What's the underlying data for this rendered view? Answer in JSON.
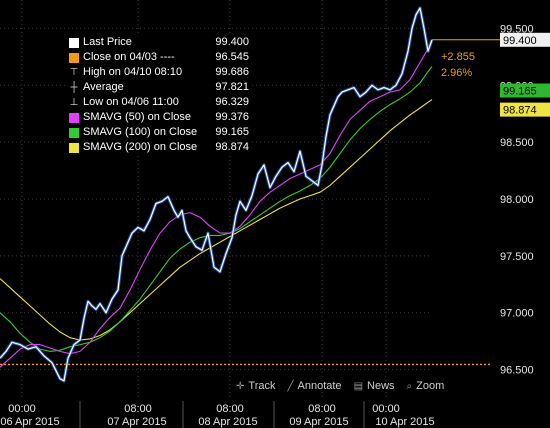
{
  "chart_data": {
    "type": "line",
    "y_ticks": [
      "99.500",
      "99.000",
      "98.500",
      "98.000",
      "97.500",
      "97.000",
      "96.500"
    ],
    "ylim": [
      96.25,
      99.75
    ],
    "x_ticks_time": [
      "00:00",
      "08:00",
      "08:00",
      "08:00",
      "00:00"
    ],
    "x_ticks_date": [
      "06 Apr 2015",
      "07 Apr 2015",
      "08 Apr 2015",
      "09 Apr 2015",
      "10 Apr 2015"
    ],
    "legend": [
      {
        "label": "Last Price",
        "value": "99.400",
        "color": "#ffffff",
        "marker": "box"
      },
      {
        "label": "Close on 04/03 ----",
        "value": "96.545",
        "color": "#f39c12",
        "marker": "box"
      },
      {
        "label": "High on 04/10 08:10",
        "value": "99.686",
        "color": "#cccccc",
        "marker": "T"
      },
      {
        "label": "Average",
        "value": "97.821",
        "color": "#cccccc",
        "marker": "avg"
      },
      {
        "label": "Low on 04/06 11:00",
        "value": "96.329",
        "color": "#cccccc",
        "marker": "bottomT"
      },
      {
        "label": "SMAVG (50) on Close",
        "value": "99.376",
        "color": "#e040fb",
        "marker": "box"
      },
      {
        "label": "SMAVG (100) on Close",
        "value": "99.165",
        "color": "#33cc33",
        "marker": "box"
      },
      {
        "label": "SMAVG (200) on Close",
        "value": "98.874",
        "color": "#f0e442",
        "marker": "box"
      }
    ],
    "price_tags": [
      {
        "value": "99.400",
        "y": 99.4,
        "bg": "#f0f0f0",
        "fg": "#000000"
      },
      {
        "value": "99.165",
        "y": 99.165,
        "bg": "#2fb82f",
        "fg": "#000000"
      },
      {
        "value": "98.874",
        "y": 98.874,
        "bg": "#f0e442",
        "fg": "#000000"
      }
    ],
    "change_abs": "+2.855",
    "change_pct": "2.96%",
    "ref_close": 96.545,
    "series": [
      {
        "name": "Last Price",
        "color": "#ffffff",
        "x": [
          0,
          6,
          12,
          20,
          28,
          36,
          44,
          52,
          60,
          64,
          68,
          74,
          80,
          84,
          88,
          92,
          96,
          100,
          106,
          112,
          118,
          122,
          126,
          132,
          138,
          144,
          150,
          156,
          162,
          168,
          174,
          178,
          182,
          186,
          190,
          196,
          202,
          208,
          214,
          220,
          226,
          232,
          236,
          240,
          246,
          252,
          258,
          264,
          270,
          276,
          282,
          288,
          294,
          300,
          306,
          312,
          318,
          322,
          326,
          330,
          334,
          338,
          342,
          348,
          354,
          360,
          366,
          372,
          378,
          384,
          390,
          396,
          402,
          408,
          412,
          416,
          420,
          424,
          428,
          432
        ],
        "y": [
          96.6,
          96.66,
          96.74,
          96.72,
          96.68,
          96.7,
          96.62,
          96.56,
          96.42,
          96.4,
          96.6,
          96.72,
          96.76,
          96.95,
          97.1,
          97.06,
          97.03,
          97.08,
          97.0,
          97.12,
          97.2,
          97.5,
          97.58,
          97.7,
          97.75,
          97.72,
          97.82,
          97.96,
          97.98,
          98.02,
          97.9,
          97.84,
          97.9,
          97.72,
          97.66,
          97.58,
          97.55,
          97.7,
          97.4,
          97.36,
          97.52,
          97.66,
          97.86,
          97.98,
          97.9,
          98.03,
          98.22,
          98.3,
          98.1,
          98.2,
          98.28,
          98.32,
          98.24,
          98.42,
          98.2,
          98.16,
          98.12,
          98.3,
          98.55,
          98.74,
          98.82,
          98.9,
          98.94,
          98.96,
          98.98,
          98.9,
          98.94,
          99.0,
          98.96,
          98.98,
          98.96,
          99.0,
          99.1,
          99.3,
          99.5,
          99.62,
          99.68,
          99.5,
          99.3,
          99.4
        ]
      },
      {
        "name": "SMAVG (50) on Close",
        "color": "#e040fb",
        "x": [
          0,
          10,
          20,
          30,
          40,
          50,
          60,
          70,
          80,
          90,
          100,
          110,
          120,
          130,
          140,
          150,
          160,
          170,
          180,
          190,
          200,
          210,
          220,
          230,
          240,
          250,
          260,
          270,
          280,
          290,
          300,
          310,
          320,
          330,
          340,
          350,
          360,
          370,
          380,
          390,
          400,
          410,
          420,
          428,
          432
        ],
        "y": [
          96.52,
          96.6,
          96.68,
          96.72,
          96.72,
          96.69,
          96.66,
          96.64,
          96.66,
          96.74,
          96.86,
          96.96,
          97.04,
          97.2,
          97.38,
          97.55,
          97.7,
          97.8,
          97.86,
          97.88,
          97.84,
          97.76,
          97.7,
          97.7,
          97.76,
          97.86,
          97.98,
          98.06,
          98.12,
          98.18,
          98.22,
          98.26,
          98.3,
          98.4,
          98.56,
          98.7,
          98.78,
          98.86,
          98.9,
          98.94,
          98.96,
          99.05,
          99.2,
          99.32,
          99.376
        ]
      },
      {
        "name": "SMAVG (100) on Close",
        "color": "#33cc33",
        "x": [
          0,
          10,
          20,
          30,
          40,
          50,
          60,
          70,
          80,
          90,
          100,
          110,
          120,
          130,
          140,
          150,
          160,
          170,
          180,
          190,
          200,
          210,
          220,
          230,
          240,
          250,
          260,
          270,
          280,
          290,
          300,
          310,
          320,
          330,
          340,
          350,
          360,
          370,
          380,
          390,
          400,
          410,
          420,
          428,
          432
        ],
        "y": [
          97.0,
          96.92,
          96.82,
          96.74,
          96.68,
          96.66,
          96.67,
          96.7,
          96.72,
          96.74,
          96.78,
          96.84,
          96.92,
          97.02,
          97.12,
          97.24,
          97.36,
          97.48,
          97.56,
          97.62,
          97.66,
          97.68,
          97.68,
          97.7,
          97.74,
          97.8,
          97.86,
          97.92,
          97.98,
          98.03,
          98.07,
          98.12,
          98.18,
          98.28,
          98.4,
          98.52,
          98.62,
          98.7,
          98.77,
          98.83,
          98.88,
          98.94,
          99.02,
          99.12,
          99.165
        ]
      },
      {
        "name": "SMAVG (200) on Close",
        "color": "#f0e442",
        "x": [
          0,
          10,
          20,
          30,
          40,
          50,
          60,
          70,
          80,
          90,
          100,
          110,
          120,
          130,
          140,
          150,
          160,
          170,
          180,
          190,
          200,
          210,
          220,
          230,
          240,
          250,
          260,
          270,
          280,
          290,
          300,
          310,
          320,
          330,
          340,
          350,
          360,
          370,
          380,
          390,
          400,
          410,
          420,
          428,
          432
        ],
        "y": [
          97.3,
          97.22,
          97.14,
          97.06,
          96.98,
          96.9,
          96.83,
          96.78,
          96.76,
          96.77,
          96.8,
          96.85,
          96.92,
          97.0,
          97.08,
          97.16,
          97.24,
          97.32,
          97.4,
          97.46,
          97.52,
          97.57,
          97.62,
          97.67,
          97.72,
          97.77,
          97.82,
          97.87,
          97.92,
          97.96,
          98.0,
          98.03,
          98.06,
          98.12,
          98.2,
          98.28,
          98.36,
          98.44,
          98.52,
          98.6,
          98.67,
          98.74,
          98.8,
          98.85,
          98.874
        ]
      }
    ]
  },
  "toolbar": {
    "track_label": "Track",
    "annotate_label": "Annotate",
    "news_label": "News",
    "zoom_label": "Zoom"
  }
}
